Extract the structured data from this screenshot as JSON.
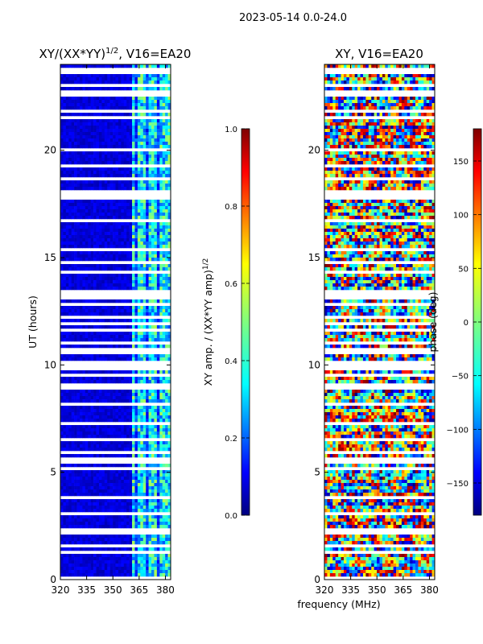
{
  "figure": {
    "suptitle": "2023-05-14 0.0-24.0",
    "xlabel": "frequency (MHz)",
    "ylabel": "UT (hours)"
  },
  "chart_data": [
    {
      "type": "heatmap",
      "title_main": "XY/(XX*YY)",
      "title_sup": "1/2",
      "title_rest": ", V16=EA20",
      "x_ticks": [
        320,
        335,
        350,
        365,
        380
      ],
      "y_ticks": [
        0,
        5,
        10,
        15,
        20
      ],
      "xlim": [
        320,
        383
      ],
      "ylim": [
        0,
        24
      ],
      "colorbar": {
        "label_main": "XY amp. / (XX*YY amp)",
        "label_sup": "1/2",
        "range": [
          0.0,
          1.0
        ],
        "ticks": [
          "0.0",
          "0.2",
          "0.4",
          "0.6",
          "0.8",
          "1.0"
        ],
        "colormap": "jet"
      }
    },
    {
      "type": "heatmap",
      "title_main": "XY, V16=EA20",
      "x_ticks": [
        320,
        335,
        350,
        365,
        380
      ],
      "y_ticks": [
        0,
        5,
        10,
        15,
        20
      ],
      "xlim": [
        320,
        383
      ],
      "ylim": [
        0,
        24
      ],
      "colorbar": {
        "label_main": "phase (deg)",
        "range": [
          -180,
          180
        ],
        "ticks": [
          "−150",
          "−100",
          "−50",
          "0",
          "50",
          "100",
          "150"
        ],
        "colormap": "jet"
      }
    }
  ],
  "colors": {
    "jet": [
      "#00007f",
      "#0000ff",
      "#007fff",
      "#00ffff",
      "#7fff7f",
      "#ffff00",
      "#ff7f00",
      "#ff0000",
      "#7f0000"
    ]
  }
}
